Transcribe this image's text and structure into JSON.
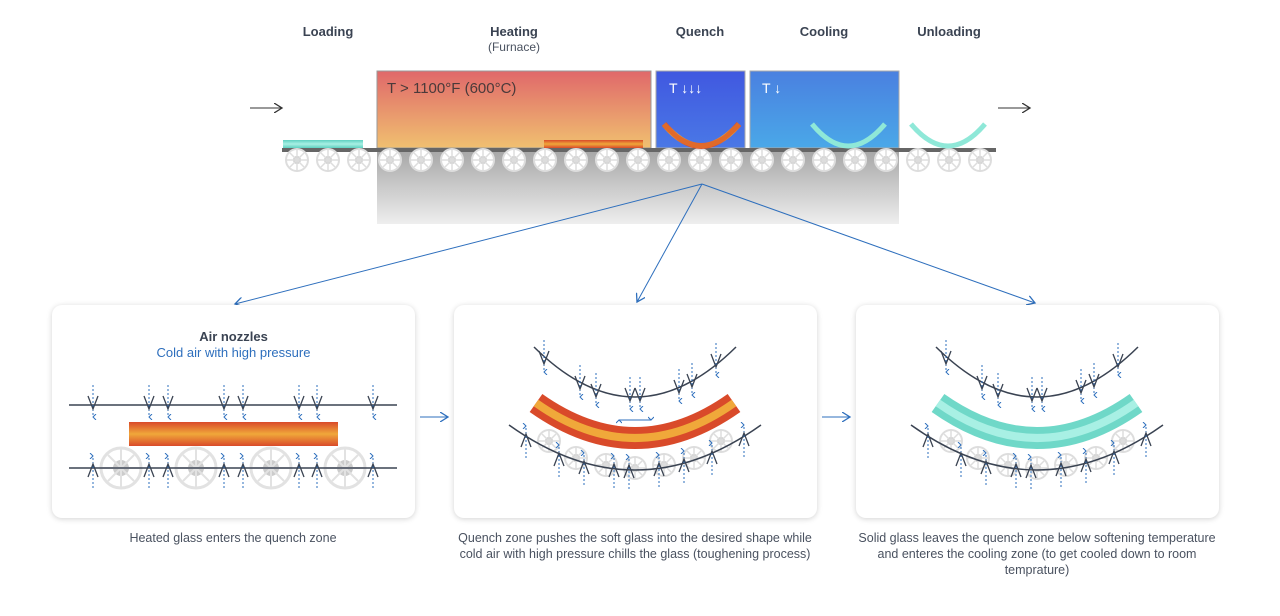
{
  "stages": {
    "loading": "Loading",
    "heating": "Heating",
    "heating_sub": "(Furnace)",
    "quench": "Quench",
    "cooling": "Cooling",
    "unloading": "Unloading"
  },
  "zones": {
    "furnace_temp": "T > 1100°F (600°C)",
    "quench_temp": "T ↓↓↓",
    "cooling_temp": "T ↓"
  },
  "panel1": {
    "title": "Air nozzles",
    "subtitle": "Cold air with high pressure",
    "caption": "Heated glass enters the quench zone"
  },
  "panel2": {
    "caption": "Quench zone pushes the soft glass into the desired shape while cold air with high pressure chills the glass (toughening process)"
  },
  "panel3": {
    "caption": "Solid glass leaves the quench zone below softening temperature and enteres the cooling zone (to get cooled down to room temprature)"
  },
  "colors": {
    "accent": "#2e6fbd",
    "text": "#3a4352",
    "hot_glass": "#e0562a",
    "cool_glass": "#7fe0d0",
    "quench_zone": "#3f5fe0",
    "cooling_zone": "#3f8fe0"
  }
}
